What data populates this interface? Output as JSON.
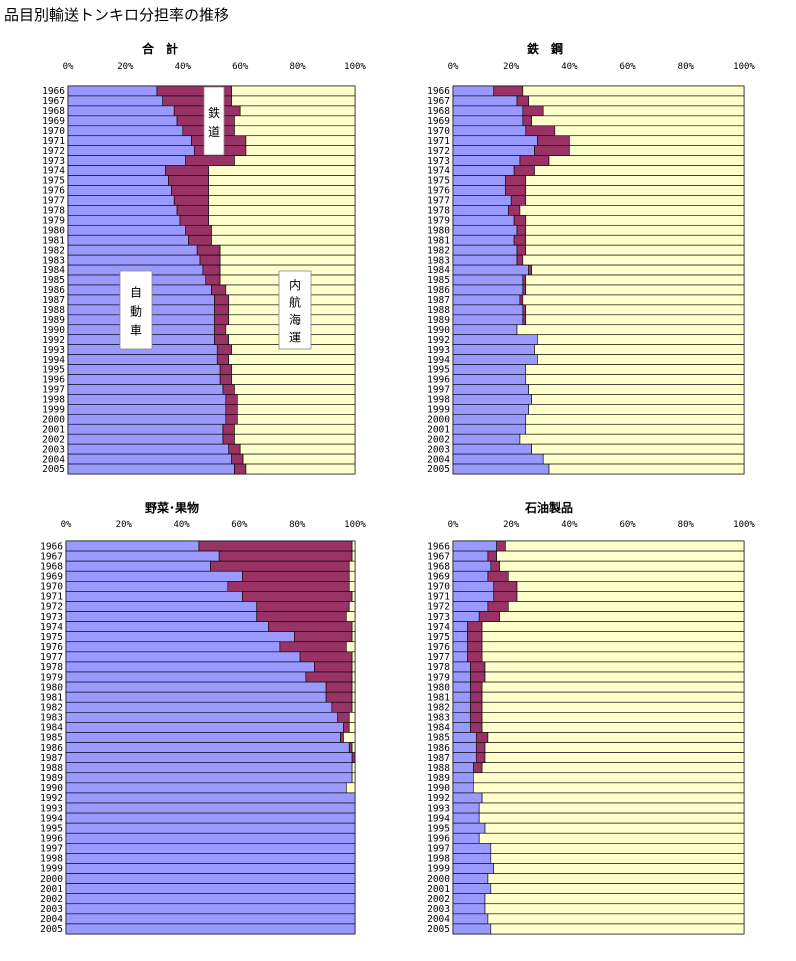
{
  "page": {
    "title": "品目別輸送トンキロ分担率の推移"
  },
  "colors": {
    "car": "#9999ff",
    "rail": "#993366",
    "ship": "#ffffcc",
    "edge": "#000000"
  },
  "chart_data": [
    {
      "type": "bar",
      "orientation": "horizontal",
      "stacked": true,
      "title": "合　計",
      "xticks": [
        "0%",
        "20%",
        "40%",
        "60%",
        "80%",
        "100%"
      ],
      "xlim": [
        0,
        100
      ],
      "categories": [
        "1966",
        "1967",
        "1968",
        "1969",
        "1970",
        "1971",
        "1972",
        "1973",
        "1974",
        "1975",
        "1976",
        "1977",
        "1978",
        "1979",
        "1980",
        "1981",
        "1982",
        "1983",
        "1984",
        "1985",
        "1986",
        "1987",
        "1988",
        "1989",
        "1990",
        "1992",
        "1993",
        "1994",
        "1995",
        "1996",
        "1997",
        "1998",
        "1999",
        "2000",
        "2001",
        "2002",
        "2003",
        "2004",
        "2005"
      ],
      "series": [
        {
          "key": "car",
          "values": [
            31,
            33,
            37,
            38,
            40,
            43,
            44,
            41,
            34,
            35,
            36,
            37,
            38,
            39,
            41,
            42,
            45,
            46,
            47,
            48,
            50,
            51,
            51,
            51,
            51,
            51,
            52,
            52,
            53,
            53,
            54,
            55,
            55,
            55,
            54,
            54,
            56,
            57,
            58
          ]
        },
        {
          "key": "rail",
          "values": [
            26,
            24,
            23,
            20,
            18,
            19,
            18,
            17,
            15,
            14,
            13,
            12,
            11,
            10,
            9,
            8,
            8,
            7,
            6,
            5,
            5,
            5,
            5,
            5,
            4,
            5,
            5,
            4,
            4,
            4,
            4,
            4,
            4,
            4,
            4,
            4,
            4,
            4,
            4
          ]
        },
        {
          "key": "ship",
          "values": [
            43,
            43,
            40,
            42,
            42,
            38,
            38,
            42,
            51,
            51,
            51,
            51,
            51,
            51,
            50,
            50,
            47,
            47,
            47,
            47,
            45,
            44,
            44,
            44,
            45,
            44,
            43,
            44,
            43,
            43,
            42,
            41,
            41,
            41,
            42,
            42,
            40,
            39,
            38
          ]
        }
      ],
      "annotations": {
        "rail": "鉄道",
        "car": "自動車",
        "ship": "内航海運"
      }
    },
    {
      "type": "bar",
      "orientation": "horizontal",
      "stacked": true,
      "title": "鉄　鋼",
      "xticks": [
        "0%",
        "20%",
        "40%",
        "60%",
        "80%",
        "100%"
      ],
      "xlim": [
        0,
        100
      ],
      "categories": [
        "1966",
        "1967",
        "1968",
        "1969",
        "1970",
        "1971",
        "1972",
        "1973",
        "1974",
        "1975",
        "1976",
        "1977",
        "1978",
        "1979",
        "1980",
        "1981",
        "1982",
        "1983",
        "1984",
        "1985",
        "1986",
        "1987",
        "1988",
        "1989",
        "1990",
        "1992",
        "1993",
        "1994",
        "1995",
        "1996",
        "1997",
        "1998",
        "1999",
        "2000",
        "2001",
        "2002",
        "2003",
        "2004",
        "2005"
      ],
      "series": [
        {
          "key": "car",
          "values": [
            14,
            22,
            24,
            24,
            25,
            29,
            28,
            23,
            21,
            18,
            18,
            20,
            19,
            21,
            22,
            21,
            22,
            22,
            26,
            24,
            24,
            23,
            24,
            24,
            22,
            29,
            28,
            29,
            25,
            25,
            26,
            27,
            26,
            25,
            25,
            23,
            27,
            31,
            33
          ]
        },
        {
          "key": "rail",
          "values": [
            10,
            4,
            7,
            3,
            10,
            11,
            12,
            10,
            7,
            7,
            7,
            5,
            4,
            4,
            3,
            4,
            3,
            2,
            1,
            1,
            1,
            1,
            1,
            1,
            0,
            0,
            0,
            0,
            0,
            0,
            0,
            0,
            0,
            0,
            0,
            0,
            0,
            0,
            0
          ]
        },
        {
          "key": "ship",
          "values": [
            76,
            74,
            69,
            73,
            65,
            60,
            60,
            67,
            72,
            75,
            75,
            75,
            77,
            75,
            75,
            75,
            75,
            76,
            73,
            75,
            75,
            76,
            75,
            75,
            78,
            71,
            72,
            71,
            75,
            75,
            74,
            73,
            74,
            75,
            75,
            77,
            73,
            69,
            67
          ]
        }
      ]
    },
    {
      "type": "bar",
      "orientation": "horizontal",
      "stacked": true,
      "title": "野菜･果物",
      "xticks": [
        "0%",
        "20%",
        "40%",
        "60%",
        "80%",
        "100%"
      ],
      "xlim": [
        0,
        100
      ],
      "categories": [
        "1966",
        "1967",
        "1968",
        "1969",
        "1970",
        "1971",
        "1972",
        "1973",
        "1974",
        "1975",
        "1976",
        "1977",
        "1978",
        "1979",
        "1980",
        "1981",
        "1982",
        "1983",
        "1984",
        "1985",
        "1986",
        "1987",
        "1988",
        "1989",
        "1990",
        "1992",
        "1993",
        "1994",
        "1995",
        "1996",
        "1997",
        "1998",
        "1999",
        "2000",
        "2001",
        "2002",
        "2003",
        "2004",
        "2005"
      ],
      "series": [
        {
          "key": "car",
          "values": [
            46,
            53,
            50,
            61,
            56,
            61,
            66,
            66,
            70,
            79,
            74,
            81,
            86,
            83,
            90,
            90,
            92,
            94,
            96,
            95,
            98,
            99,
            99,
            99,
            97,
            100,
            100,
            100,
            100,
            100,
            100,
            100,
            100,
            100,
            100,
            100,
            100,
            100,
            100
          ]
        },
        {
          "key": "rail",
          "values": [
            53,
            46,
            48,
            37,
            42,
            38,
            32,
            31,
            29,
            20,
            23,
            18,
            13,
            16,
            9,
            9,
            7,
            4,
            2,
            1,
            1,
            1,
            0,
            0,
            0,
            0,
            0,
            0,
            0,
            0,
            0,
            0,
            0,
            0,
            0,
            0,
            0,
            0,
            0
          ]
        },
        {
          "key": "ship",
          "values": [
            1,
            1,
            2,
            2,
            2,
            1,
            2,
            3,
            1,
            1,
            3,
            1,
            1,
            1,
            1,
            1,
            1,
            2,
            2,
            4,
            1,
            0,
            1,
            1,
            3,
            0,
            0,
            0,
            0,
            0,
            0,
            0,
            0,
            0,
            0,
            0,
            0,
            0,
            0
          ]
        }
      ]
    },
    {
      "type": "bar",
      "orientation": "horizontal",
      "stacked": true,
      "title": "石油製品",
      "xticks": [
        "0%",
        "20%",
        "40%",
        "60%",
        "80%",
        "100%"
      ],
      "xlim": [
        0,
        100
      ],
      "categories": [
        "1966",
        "1967",
        "1968",
        "1969",
        "1970",
        "1971",
        "1972",
        "1973",
        "1974",
        "1975",
        "1976",
        "1977",
        "1978",
        "1979",
        "1980",
        "1981",
        "1982",
        "1983",
        "1984",
        "1985",
        "1986",
        "1987",
        "1988",
        "1989",
        "1990",
        "1992",
        "1993",
        "1994",
        "1995",
        "1996",
        "1997",
        "1998",
        "1999",
        "2000",
        "2001",
        "2002",
        "2003",
        "2004",
        "2005"
      ],
      "series": [
        {
          "key": "car",
          "values": [
            15,
            12,
            13,
            12,
            14,
            14,
            12,
            9,
            5,
            5,
            5,
            5,
            6,
            6,
            6,
            6,
            6,
            6,
            6,
            8,
            8,
            8,
            7,
            7,
            7,
            10,
            9,
            9,
            11,
            9,
            13,
            13,
            14,
            12,
            13,
            11,
            11,
            12,
            13
          ]
        },
        {
          "key": "rail",
          "values": [
            3,
            3,
            3,
            7,
            8,
            8,
            7,
            7,
            5,
            5,
            5,
            5,
            5,
            5,
            4,
            4,
            4,
            4,
            4,
            4,
            3,
            3,
            3,
            0,
            0,
            0,
            0,
            0,
            0,
            0,
            0,
            0,
            0,
            0,
            0,
            0,
            0,
            0,
            0
          ]
        },
        {
          "key": "ship",
          "values": [
            82,
            85,
            84,
            81,
            78,
            78,
            81,
            84,
            90,
            90,
            90,
            90,
            89,
            89,
            90,
            90,
            90,
            90,
            90,
            88,
            89,
            89,
            90,
            93,
            93,
            90,
            91,
            91,
            89,
            91,
            87,
            87,
            86,
            88,
            87,
            89,
            89,
            88,
            87
          ]
        }
      ]
    }
  ]
}
